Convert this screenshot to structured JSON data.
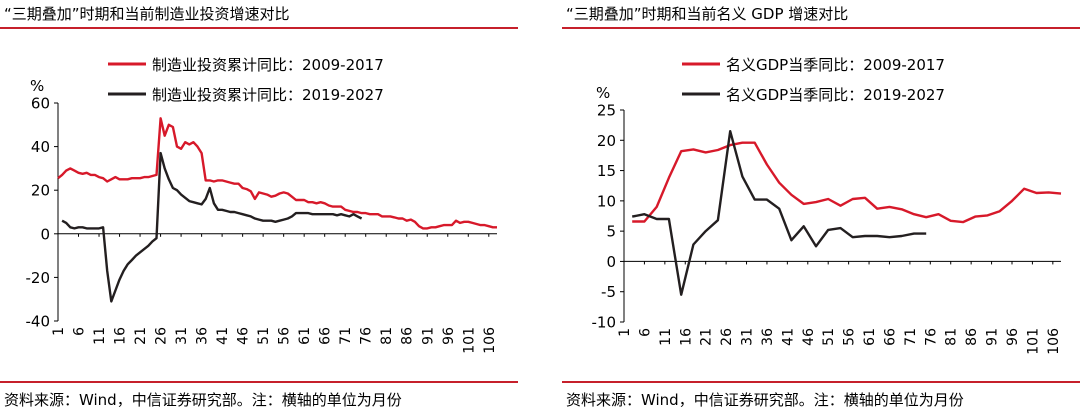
{
  "charts": [
    {
      "title": "“三期叠加”时期和当前制造业投资增速对比",
      "source": "资料来源：Wind，中信证券研究部。注：横轴的单位为月份",
      "chart_data": {
        "type": "line",
        "ylabel": "%",
        "ylim": [
          -40,
          60
        ],
        "yticks": [
          -40,
          -20,
          0,
          20,
          40,
          60
        ],
        "xlim": [
          1,
          108
        ],
        "xticks": [
          1,
          6,
          11,
          16,
          21,
          26,
          31,
          36,
          41,
          46,
          51,
          56,
          61,
          66,
          71,
          76,
          81,
          86,
          91,
          96,
          101,
          106
        ],
        "legend_position": "top-center",
        "grid": false,
        "series": [
          {
            "name": "制造业投资累计同比：2009-2017",
            "color": "#d7192a",
            "points": [
              [
                1,
                25.5
              ],
              [
                2,
                27
              ],
              [
                3,
                29
              ],
              [
                4,
                30
              ],
              [
                5,
                29
              ],
              [
                6,
                28
              ],
              [
                7,
                27.5
              ],
              [
                8,
                28
              ],
              [
                9,
                27
              ],
              [
                10,
                27
              ],
              [
                11,
                26
              ],
              [
                12,
                25.5
              ],
              [
                13,
                24
              ],
              [
                14,
                25
              ],
              [
                15,
                26
              ],
              [
                16,
                25
              ],
              [
                17,
                25
              ],
              [
                18,
                25
              ],
              [
                19,
                25.5
              ],
              [
                20,
                25.5
              ],
              [
                21,
                25.5
              ],
              [
                22,
                26
              ],
              [
                23,
                26
              ],
              [
                24,
                26.5
              ],
              [
                25,
                27
              ],
              [
                26,
                53
              ],
              [
                27,
                45
              ],
              [
                28,
                50
              ],
              [
                29,
                49
              ],
              [
                30,
                40
              ],
              [
                31,
                39
              ],
              [
                32,
                42
              ],
              [
                33,
                41
              ],
              [
                34,
                42
              ],
              [
                35,
                40
              ],
              [
                36,
                37
              ],
              [
                37,
                24.5
              ],
              [
                38,
                24.5
              ],
              [
                39,
                24
              ],
              [
                40,
                24.5
              ],
              [
                41,
                24.5
              ],
              [
                42,
                24
              ],
              [
                43,
                23.5
              ],
              [
                44,
                23
              ],
              [
                45,
                23
              ],
              [
                46,
                21
              ],
              [
                47,
                20.5
              ],
              [
                48,
                19.5
              ],
              [
                49,
                16
              ],
              [
                50,
                19
              ],
              [
                51,
                18.5
              ],
              [
                52,
                18
              ],
              [
                53,
                17
              ],
              [
                54,
                17.5
              ],
              [
                55,
                18.5
              ],
              [
                56,
                19
              ],
              [
                57,
                18.5
              ],
              [
                58,
                17
              ],
              [
                59,
                15.5
              ],
              [
                60,
                15.5
              ],
              [
                61,
                15.5
              ],
              [
                62,
                14.5
              ],
              [
                63,
                14.5
              ],
              [
                64,
                14
              ],
              [
                65,
                14.5
              ],
              [
                66,
                14
              ],
              [
                67,
                13
              ],
              [
                68,
                12.5
              ],
              [
                69,
                12.5
              ],
              [
                70,
                12.5
              ],
              [
                71,
                11
              ],
              [
                72,
                10.5
              ],
              [
                73,
                10
              ],
              [
                74,
                10
              ],
              [
                75,
                9.5
              ],
              [
                76,
                9.5
              ],
              [
                77,
                9
              ],
              [
                78,
                9
              ],
              [
                79,
                9
              ],
              [
                80,
                8
              ],
              [
                81,
                8
              ],
              [
                82,
                8
              ],
              [
                83,
                7.5
              ],
              [
                84,
                7
              ],
              [
                85,
                7
              ],
              [
                86,
                6
              ],
              [
                87,
                6.5
              ],
              [
                88,
                5.5
              ],
              [
                89,
                3.5
              ],
              [
                90,
                2.5
              ],
              [
                91,
                2.5
              ],
              [
                92,
                3
              ],
              [
                93,
                3
              ],
              [
                94,
                3.5
              ],
              [
                95,
                4
              ],
              [
                96,
                4
              ],
              [
                97,
                4
              ],
              [
                98,
                6
              ],
              [
                99,
                5
              ],
              [
                100,
                5.5
              ],
              [
                101,
                5.5
              ],
              [
                102,
                5
              ],
              [
                103,
                4.5
              ],
              [
                104,
                4
              ],
              [
                105,
                4
              ],
              [
                106,
                3.5
              ],
              [
                107,
                3
              ],
              [
                108,
                3
              ]
            ]
          },
          {
            "name": "制造业投资累计同比：2019-2027",
            "color": "#231f20",
            "points": [
              [
                2,
                6
              ],
              [
                3,
                5
              ],
              [
                4,
                3
              ],
              [
                5,
                2.5
              ],
              [
                6,
                3
              ],
              [
                7,
                3
              ],
              [
                8,
                2.5
              ],
              [
                9,
                2.5
              ],
              [
                10,
                2.5
              ],
              [
                11,
                2.5
              ],
              [
                12,
                3
              ],
              [
                13,
                -17
              ],
              [
                14,
                -31
              ],
              [
                15,
                -26
              ],
              [
                16,
                -21
              ],
              [
                17,
                -17
              ],
              [
                18,
                -14
              ],
              [
                19,
                -12
              ],
              [
                20,
                -10
              ],
              [
                21,
                -8.5
              ],
              [
                22,
                -7
              ],
              [
                23,
                -5.5
              ],
              [
                24,
                -3.5
              ],
              [
                25,
                -2
              ],
              [
                26,
                37
              ],
              [
                27,
                30
              ],
              [
                28,
                25
              ],
              [
                29,
                21
              ],
              [
                30,
                20
              ],
              [
                31,
                18
              ],
              [
                32,
                16.5
              ],
              [
                33,
                15
              ],
              [
                34,
                14.5
              ],
              [
                35,
                14
              ],
              [
                36,
                13.5
              ],
              [
                37,
                16
              ],
              [
                38,
                21
              ],
              [
                39,
                14
              ],
              [
                40,
                11
              ],
              [
                41,
                11
              ],
              [
                42,
                10.5
              ],
              [
                43,
                10
              ],
              [
                44,
                10
              ],
              [
                45,
                9.5
              ],
              [
                46,
                9
              ],
              [
                47,
                8.5
              ],
              [
                48,
                8
              ],
              [
                49,
                7
              ],
              [
                50,
                6.5
              ],
              [
                51,
                6
              ],
              [
                52,
                6
              ],
              [
                53,
                6
              ],
              [
                54,
                5.5
              ],
              [
                55,
                6
              ],
              [
                56,
                6.5
              ],
              [
                57,
                7
              ],
              [
                58,
                8
              ],
              [
                59,
                9.5
              ],
              [
                60,
                9.5
              ],
              [
                61,
                9.5
              ],
              [
                62,
                9.5
              ],
              [
                63,
                9
              ],
              [
                64,
                9
              ],
              [
                65,
                9
              ],
              [
                66,
                9
              ],
              [
                67,
                9
              ],
              [
                68,
                9
              ],
              [
                69,
                8.5
              ],
              [
                70,
                9
              ],
              [
                71,
                8.5
              ],
              [
                72,
                8
              ],
              [
                73,
                9
              ],
              [
                74,
                8
              ],
              [
                75,
                7
              ]
            ]
          }
        ]
      }
    },
    {
      "title": "“三期叠加”时期和当前名义 GDP 增速对比",
      "source": "资料来源：Wind，中信证券研究部。注：横轴的单位为月份",
      "chart_data": {
        "type": "line",
        "ylabel": "%",
        "ylim": [
          -10,
          25
        ],
        "yticks": [
          -10,
          -5,
          0,
          5,
          10,
          15,
          20,
          25
        ],
        "xlim": [
          1,
          108
        ],
        "xticks": [
          1,
          6,
          11,
          16,
          21,
          26,
          31,
          36,
          41,
          46,
          51,
          56,
          61,
          66,
          71,
          76,
          81,
          86,
          91,
          96,
          101,
          106
        ],
        "legend_position": "top-center",
        "grid": false,
        "series": [
          {
            "name": "名义GDP当季同比：2009-2017",
            "color": "#d7192a",
            "points": [
              [
                3,
                6.6
              ],
              [
                6,
                6.6
              ],
              [
                9,
                9
              ],
              [
                12,
                13.8
              ],
              [
                15,
                18.2
              ],
              [
                18,
                18.5
              ],
              [
                21,
                18
              ],
              [
                24,
                18.4
              ],
              [
                27,
                19.2
              ],
              [
                30,
                19.6
              ],
              [
                33,
                19.6
              ],
              [
                36,
                16
              ],
              [
                39,
                13
              ],
              [
                42,
                11
              ],
              [
                45,
                9.5
              ],
              [
                48,
                9.8
              ],
              [
                51,
                10.3
              ],
              [
                54,
                9.2
              ],
              [
                57,
                10.3
              ],
              [
                60,
                10.5
              ],
              [
                63,
                8.7
              ],
              [
                66,
                9
              ],
              [
                69,
                8.6
              ],
              [
                72,
                7.8
              ],
              [
                75,
                7.3
              ],
              [
                78,
                7.8
              ],
              [
                81,
                6.7
              ],
              [
                84,
                6.5
              ],
              [
                87,
                7.4
              ],
              [
                90,
                7.6
              ],
              [
                93,
                8.3
              ],
              [
                96,
                10
              ],
              [
                99,
                12
              ],
              [
                102,
                11.3
              ],
              [
                105,
                11.4
              ],
              [
                108,
                11.2
              ]
            ]
          },
          {
            "name": "名义GDP当季同比：2019-2027",
            "color": "#231f20",
            "points": [
              [
                3,
                7.4
              ],
              [
                6,
                7.8
              ],
              [
                9,
                7
              ],
              [
                12,
                7
              ],
              [
                15,
                -5.5
              ],
              [
                18,
                2.8
              ],
              [
                21,
                5
              ],
              [
                24,
                6.8
              ],
              [
                27,
                21.5
              ],
              [
                30,
                14
              ],
              [
                33,
                10.2
              ],
              [
                36,
                10.2
              ],
              [
                39,
                8.7
              ],
              [
                42,
                3.5
              ],
              [
                45,
                5.8
              ],
              [
                48,
                2.5
              ],
              [
                51,
                5.2
              ],
              [
                54,
                5.5
              ],
              [
                57,
                4
              ],
              [
                60,
                4.2
              ],
              [
                63,
                4.2
              ],
              [
                66,
                4
              ],
              [
                69,
                4.2
              ],
              [
                72,
                4.6
              ],
              [
                75,
                4.6
              ]
            ]
          }
        ]
      }
    }
  ]
}
